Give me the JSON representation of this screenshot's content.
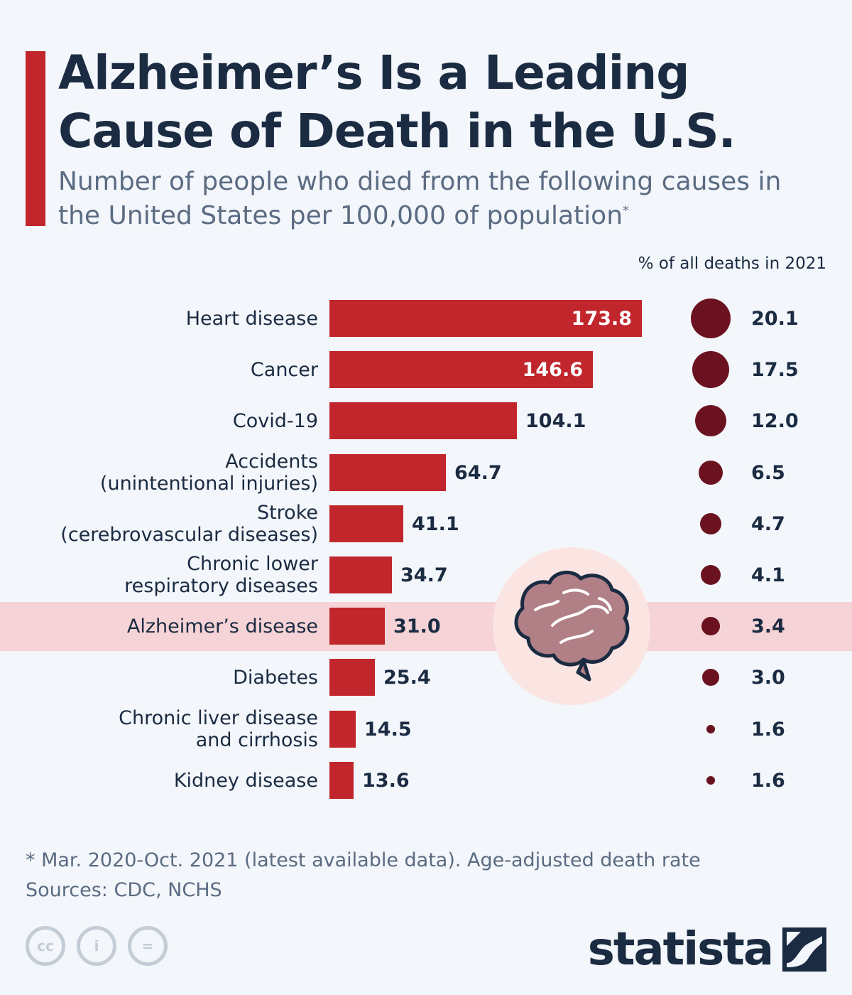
{
  "title": "Alzheimer’s Is a Leading Cause of Death in the U.S.",
  "subtitle": "Number of people who died from the following causes in the United States per 100,000 of population",
  "subtitle_mark": "*",
  "pct_header": "% of all deaths in 2021",
  "highlight_category": "Alzheimer’s disease",
  "colors": {
    "bar": "#c0262b",
    "dot": "#6b1220",
    "highlight": "#f6d3d6",
    "accent": "#c0262b",
    "text": "#1a2b42"
  },
  "chart_data": {
    "type": "bar",
    "orientation": "horizontal",
    "title": "Alzheimer’s Is a Leading Cause of Death in the U.S.",
    "subtitle": "Number of people who died from the following causes in the United States per 100,000 of population",
    "xlabel": "",
    "ylabel": "",
    "grid": false,
    "categories": [
      "Heart disease",
      "Cancer",
      "Covid-19",
      "Accidents\n(unintentional injuries)",
      "Stroke\n(cerebrovascular diseases)",
      "Chronic lower\nrespiratory diseases",
      "Alzheimer’s disease",
      "Diabetes",
      "Chronic liver disease\nand cirrhosis",
      "Kidney disease"
    ],
    "values": [
      173.8,
      146.6,
      104.1,
      64.7,
      41.1,
      34.7,
      31.0,
      25.4,
      14.5,
      13.6
    ],
    "value_labels": [
      "173.8",
      "146.6",
      "104.1",
      "64.7",
      "41.1",
      "34.7",
      "31.0",
      "25.4",
      "14.5",
      "13.6"
    ],
    "pct_of_deaths": [
      20.1,
      17.5,
      12.0,
      6.5,
      4.7,
      4.1,
      3.4,
      3.0,
      1.6,
      1.6
    ],
    "pct_labels": [
      "20.1",
      "17.5",
      "12.0",
      "6.5",
      "4.7",
      "4.1",
      "3.4",
      "3.0",
      "1.6",
      "1.6"
    ]
  },
  "footer": {
    "note": "* Mar. 2020-Oct. 2021 (latest available data). Age-adjusted death rate",
    "sources": "Sources: CDC, NCHS"
  },
  "license_icons": [
    "cc-icon",
    "attribution-icon",
    "no-derivatives-icon"
  ],
  "license_glyphs": [
    "cc",
    "i",
    "="
  ],
  "brand": {
    "name": "statista",
    "logo_icon": "statista-logo-icon"
  }
}
